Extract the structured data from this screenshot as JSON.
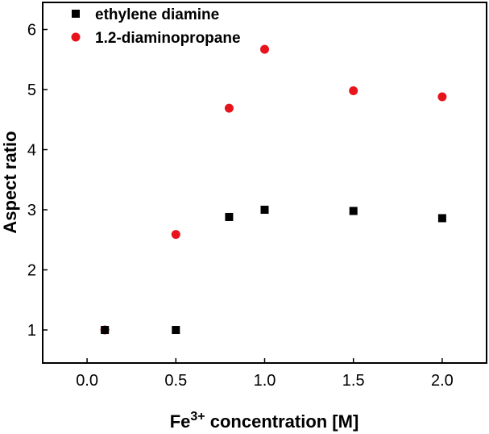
{
  "chart_data": {
    "type": "scatter",
    "xlabel": {
      "prefix": "Fe",
      "superscript": "3+",
      "suffix": " concentration [M]"
    },
    "ylabel": "Aspect ratio",
    "xlim": [
      -0.25,
      2.25
    ],
    "ylim": [
      0.45,
      6.45
    ],
    "x_ticks": [
      {
        "value": 0.0,
        "label": "0.0"
      },
      {
        "value": 0.5,
        "label": "0.5"
      },
      {
        "value": 1.0,
        "label": "1.0"
      },
      {
        "value": 1.5,
        "label": "1.5"
      },
      {
        "value": 2.0,
        "label": "2.0"
      }
    ],
    "y_ticks": [
      {
        "value": 1,
        "label": "1"
      },
      {
        "value": 2,
        "label": "2"
      },
      {
        "value": 3,
        "label": "3"
      },
      {
        "value": 4,
        "label": "4"
      },
      {
        "value": 5,
        "label": "5"
      },
      {
        "value": 6,
        "label": "6"
      }
    ],
    "grid": false,
    "legend_position": "top-left",
    "series": [
      {
        "name": "ethylene diamine",
        "marker": "square",
        "color": "#000000",
        "x": [
          0.1,
          0.5,
          0.8,
          1.0,
          1.5,
          2.0
        ],
        "y": [
          1.0,
          1.0,
          2.88,
          3.0,
          2.98,
          2.86
        ]
      },
      {
        "name": "1.2-diaminopropane",
        "marker": "circle",
        "color": "#e8141c",
        "x": [
          0.1,
          0.5,
          0.8,
          1.0,
          1.5,
          2.0
        ],
        "y": [
          1.0,
          2.59,
          4.69,
          5.67,
          4.98,
          4.88
        ]
      }
    ]
  }
}
